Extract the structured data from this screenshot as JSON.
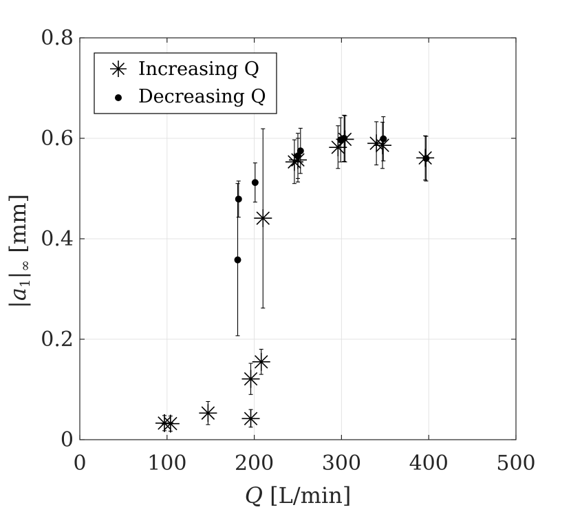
{
  "chart_data": {
    "type": "scatter",
    "title": "",
    "xlabel_symbol": "Q",
    "xlabel_unit": " [L/min]",
    "ylabel_main": "|a",
    "ylabel_sub1": "1",
    "ylabel_mid": "|",
    "ylabel_sub2": "∞",
    "ylabel_unit": " [mm]",
    "xlim": [
      0,
      500
    ],
    "ylim": [
      0,
      0.8
    ],
    "xticks": [
      0,
      100,
      200,
      300,
      400,
      500
    ],
    "xtick_labels": [
      "0",
      "100",
      "200",
      "300",
      "400",
      "500"
    ],
    "yticks": [
      0,
      0.2,
      0.4,
      0.6,
      0.8
    ],
    "ytick_labels": [
      "0",
      "0.2",
      "0.4",
      "0.6",
      "0.8"
    ],
    "grid": true,
    "legend_position": "top-left",
    "series": [
      {
        "name": "Increasing Q",
        "marker": "asterisk",
        "points": [
          {
            "x": 97,
            "y": 0.033,
            "lo": 0.018,
            "hi": 0.048
          },
          {
            "x": 104,
            "y": 0.032,
            "lo": 0.017,
            "hi": 0.047
          },
          {
            "x": 147,
            "y": 0.053,
            "lo": 0.03,
            "hi": 0.076
          },
          {
            "x": 196,
            "y": 0.042,
            "lo": 0.025,
            "hi": 0.06
          },
          {
            "x": 196,
            "y": 0.121,
            "lo": 0.09,
            "hi": 0.152
          },
          {
            "x": 208,
            "y": 0.155,
            "lo": 0.13,
            "hi": 0.18
          },
          {
            "x": 210,
            "y": 0.441,
            "lo": 0.262,
            "hi": 0.619
          },
          {
            "x": 246,
            "y": 0.553,
            "lo": 0.51,
            "hi": 0.597
          },
          {
            "x": 250,
            "y": 0.557,
            "lo": 0.513,
            "hi": 0.6
          },
          {
            "x": 296,
            "y": 0.582,
            "lo": 0.54,
            "hi": 0.625
          },
          {
            "x": 304,
            "y": 0.598,
            "lo": 0.553,
            "hi": 0.645
          },
          {
            "x": 340,
            "y": 0.59,
            "lo": 0.547,
            "hi": 0.633
          },
          {
            "x": 347,
            "y": 0.586,
            "lo": 0.54,
            "hi": 0.632
          },
          {
            "x": 396,
            "y": 0.561,
            "lo": 0.517,
            "hi": 0.605
          }
        ]
      },
      {
        "name": "Decreasing Q",
        "marker": "dot",
        "points": [
          {
            "x": 181,
            "y": 0.358,
            "lo": 0.207,
            "hi": 0.51
          },
          {
            "x": 182,
            "y": 0.479,
            "lo": 0.443,
            "hi": 0.515
          },
          {
            "x": 201,
            "y": 0.512,
            "lo": 0.473,
            "hi": 0.551
          },
          {
            "x": 250,
            "y": 0.565,
            "lo": 0.52,
            "hi": 0.61
          },
          {
            "x": 253,
            "y": 0.575,
            "lo": 0.53,
            "hi": 0.62
          },
          {
            "x": 299,
            "y": 0.597,
            "lo": 0.553,
            "hi": 0.641
          },
          {
            "x": 303,
            "y": 0.6,
            "lo": 0.554,
            "hi": 0.646
          },
          {
            "x": 348,
            "y": 0.599,
            "lo": 0.555,
            "hi": 0.643
          },
          {
            "x": 397,
            "y": 0.56,
            "lo": 0.515,
            "hi": 0.604
          }
        ]
      }
    ]
  }
}
